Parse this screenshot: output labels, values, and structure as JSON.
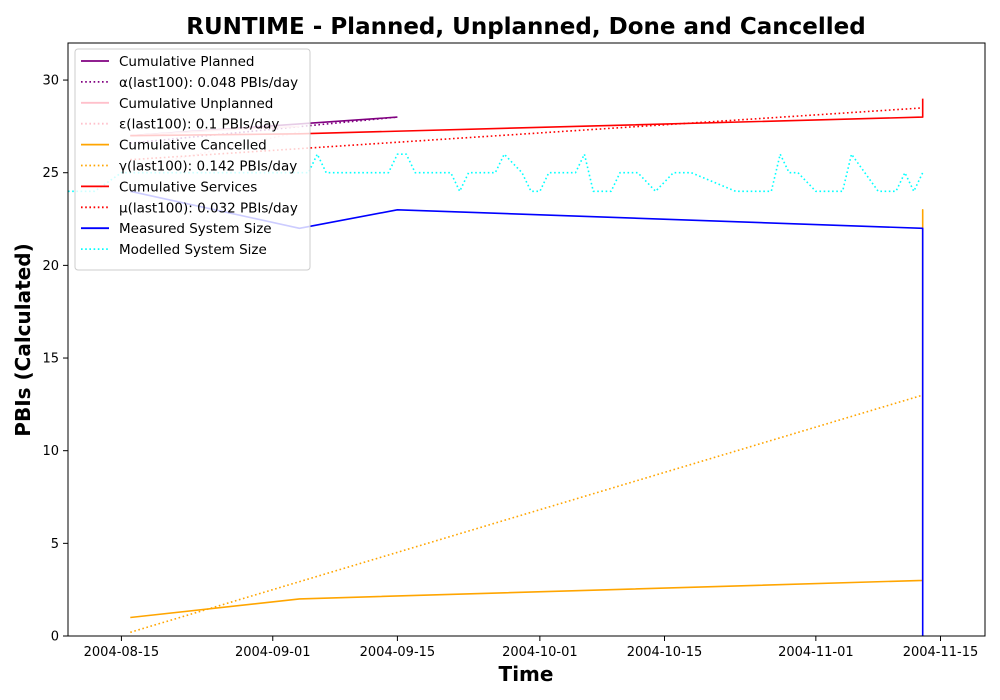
{
  "chart_data": {
    "type": "line",
    "title": "RUNTIME - Planned, Unplanned, Done  and Cancelled",
    "xlabel": "Time",
    "ylabel": "PBIs (Calculated)",
    "xlim": [
      "2004-08-09",
      "2004-11-20"
    ],
    "ylim": [
      0,
      32
    ],
    "x_ticks": [
      "2004-08-15",
      "2004-09-01",
      "2004-09-15",
      "2004-10-01",
      "2004-10-15",
      "2004-11-01",
      "2004-11-15"
    ],
    "y_ticks": [
      0,
      5,
      10,
      15,
      20,
      25,
      30
    ],
    "legend_position": "upper-left",
    "series": [
      {
        "name": "Cumulative Planned",
        "color": "#800080",
        "style": "solid",
        "x": [
          "2004-08-16",
          "2004-09-15"
        ],
        "y": [
          27,
          28
        ]
      },
      {
        "name": "α(last100): 0.048 PBIs/day",
        "color": "#800080",
        "style": "dotted",
        "x": [
          "2004-08-16",
          "2004-09-15"
        ],
        "y": [
          26.6,
          28.0
        ]
      },
      {
        "name": "Cumulative Unplanned",
        "color": "#ffc0cb",
        "style": "solid",
        "x": [
          "2004-08-16",
          "2004-08-26",
          "2004-09-04"
        ],
        "y": [
          27,
          27.3,
          27.5
        ]
      },
      {
        "name": "ε(last100): 0.1 PBIs/day",
        "color": "#ffc0cb",
        "style": "dotted",
        "x": [
          "2004-08-16",
          "2004-09-04"
        ],
        "y": [
          25.2,
          27.2
        ]
      },
      {
        "name": "Cumulative Cancelled",
        "color": "#ffa500",
        "style": "solid",
        "x": [
          "2004-08-16",
          "2004-09-04",
          "2004-11-13",
          "2004-11-13",
          "2004-11-13"
        ],
        "y": [
          1,
          2,
          3,
          23,
          22
        ]
      },
      {
        "name": "γ(last100): 0.142 PBIs/day",
        "color": "#ffa500",
        "style": "dotted",
        "x": [
          "2004-08-16",
          "2004-11-13"
        ],
        "y": [
          0.2,
          13.0
        ]
      },
      {
        "name": "Cumulative Services",
        "color": "#ff0000",
        "style": "solid",
        "x": [
          "2004-08-16",
          "2004-09-04",
          "2004-11-13",
          "2004-11-13"
        ],
        "y": [
          27,
          27.1,
          28.0,
          29.0
        ]
      },
      {
        "name": "μ(last100): 0.032 PBIs/day",
        "color": "#ff0000",
        "style": "dotted",
        "x": [
          "2004-08-16",
          "2004-11-13"
        ],
        "y": [
          25.7,
          28.5
        ]
      },
      {
        "name": "Measured System Size",
        "color": "#0000ff",
        "style": "solid",
        "x": [
          "2004-08-16",
          "2004-09-04",
          "2004-09-15",
          "2004-11-13",
          "2004-11-13"
        ],
        "y": [
          24,
          22,
          23,
          22,
          0
        ]
      },
      {
        "name": "Modelled System Size",
        "color": "#00ffff",
        "style": "dotted",
        "x": [
          "2004-08-09",
          "2004-08-12",
          "2004-08-15",
          "2004-08-18",
          "2004-08-21",
          "2004-08-24",
          "2004-08-27",
          "2004-08-30",
          "2004-09-02",
          "2004-09-05",
          "2004-09-06",
          "2004-09-07",
          "2004-09-09",
          "2004-09-12",
          "2004-09-14",
          "2004-09-15",
          "2004-09-16",
          "2004-09-17",
          "2004-09-18",
          "2004-09-21",
          "2004-09-22",
          "2004-09-23",
          "2004-09-24",
          "2004-09-26",
          "2004-09-27",
          "2004-09-29",
          "2004-09-30",
          "2004-10-01",
          "2004-10-02",
          "2004-10-03",
          "2004-10-05",
          "2004-10-06",
          "2004-10-07",
          "2004-10-09",
          "2004-10-10",
          "2004-10-12",
          "2004-10-14",
          "2004-10-16",
          "2004-10-17",
          "2004-10-18",
          "2004-10-23",
          "2004-10-24",
          "2004-10-27",
          "2004-10-28",
          "2004-10-29",
          "2004-10-30",
          "2004-11-01",
          "2004-11-03",
          "2004-11-04",
          "2004-11-05",
          "2004-11-08",
          "2004-11-09",
          "2004-11-10",
          "2004-11-11",
          "2004-11-12",
          "2004-11-13"
        ],
        "y": [
          24,
          24,
          25,
          25,
          25,
          25,
          25,
          25,
          25,
          25,
          26,
          25,
          25,
          25,
          25,
          26,
          26,
          25,
          25,
          25,
          24,
          25,
          25,
          25,
          26,
          25,
          24,
          24,
          25,
          25,
          25,
          26,
          24,
          24,
          25,
          25,
          24,
          25,
          25,
          25,
          24,
          24,
          24,
          26,
          25,
          25,
          24,
          24,
          24,
          26,
          24,
          24,
          24,
          25,
          24,
          25
        ]
      }
    ]
  }
}
